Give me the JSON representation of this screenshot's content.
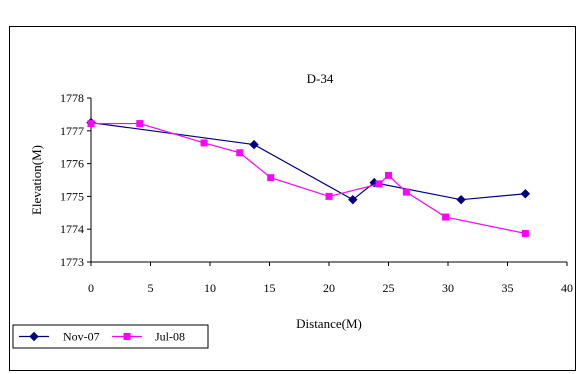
{
  "chart_data": {
    "type": "line",
    "title": "D-34",
    "xlabel": "Distance(M)",
    "ylabel": "Elevation(M)",
    "xlim": [
      0,
      40
    ],
    "ylim": [
      1773,
      1778
    ],
    "x_ticks": [
      "0",
      "5",
      "10",
      "15",
      "20",
      "25",
      "30",
      "35",
      "40"
    ],
    "y_ticks": [
      "1773",
      "1774",
      "1775",
      "1776",
      "1777",
      "1778"
    ],
    "grid": false,
    "legend_position": "bottom-left",
    "series": [
      {
        "name": "Nov-07",
        "color": "#000080",
        "marker": "diamond",
        "points": [
          [
            0,
            1777.25
          ],
          [
            13.7,
            1776.58
          ],
          [
            22.0,
            1774.9
          ],
          [
            23.8,
            1775.42
          ],
          [
            31.1,
            1774.9
          ],
          [
            36.5,
            1775.08
          ]
        ]
      },
      {
        "name": "Jul-08",
        "color": "#ff00ff",
        "marker": "square",
        "points": [
          [
            0,
            1777.22
          ],
          [
            4.1,
            1777.22
          ],
          [
            9.5,
            1776.63
          ],
          [
            12.5,
            1776.33
          ],
          [
            15.1,
            1775.57
          ],
          [
            20.0,
            1775.0
          ],
          [
            24.2,
            1775.38
          ],
          [
            25.0,
            1775.64
          ],
          [
            26.5,
            1775.13
          ],
          [
            29.8,
            1774.37
          ],
          [
            36.5,
            1773.87
          ]
        ]
      }
    ]
  }
}
